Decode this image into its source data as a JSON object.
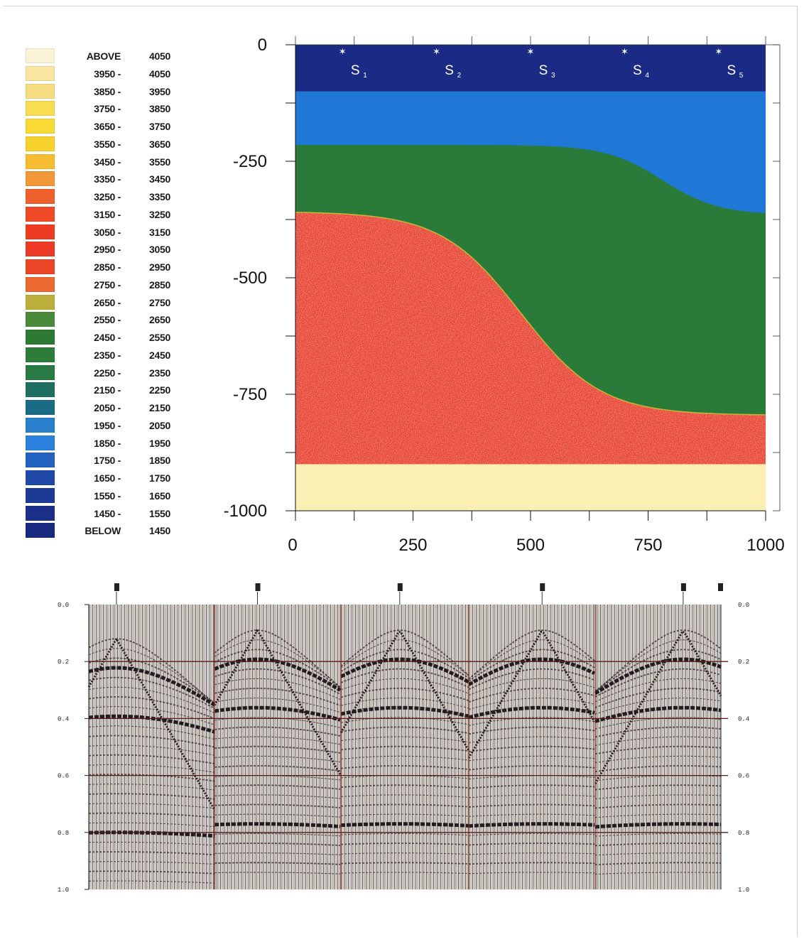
{
  "legend": {
    "items": [
      {
        "low": "ABOVE",
        "high": "4050",
        "color": "#fbf3d8"
      },
      {
        "low": "3950 -",
        "high": "4050",
        "color": "#f8e6a0"
      },
      {
        "low": "3850 -",
        "high": "3950",
        "color": "#f7dd82"
      },
      {
        "low": "3750 -",
        "high": "3850",
        "color": "#f8dc52"
      },
      {
        "low": "3650 -",
        "high": "3750",
        "color": "#f9d934"
      },
      {
        "low": "3550 -",
        "high": "3650",
        "color": "#f8d22c"
      },
      {
        "low": "3450 -",
        "high": "3550",
        "color": "#f6bd32"
      },
      {
        "low": "3350 -",
        "high": "3450",
        "color": "#f29838"
      },
      {
        "low": "3250 -",
        "high": "3350",
        "color": "#f0602c"
      },
      {
        "low": "3150 -",
        "high": "3250",
        "color": "#ee4a26"
      },
      {
        "low": "3050 -",
        "high": "3150",
        "color": "#ee3c22"
      },
      {
        "low": "2950 -",
        "high": "3050",
        "color": "#ec3a26"
      },
      {
        "low": "2850 -",
        "high": "2950",
        "color": "#ec4426"
      },
      {
        "low": "2750 -",
        "high": "2850",
        "color": "#ec6a32"
      },
      {
        "low": "2650 -",
        "high": "2750",
        "color": "#bcae3a"
      },
      {
        "low": "2550 -",
        "high": "2650",
        "color": "#4a8a3a"
      },
      {
        "low": "2450 -",
        "high": "2550",
        "color": "#2c7a34"
      },
      {
        "low": "2350 -",
        "high": "2450",
        "color": "#2e7c3a"
      },
      {
        "low": "2250 -",
        "high": "2350",
        "color": "#2a7a46"
      },
      {
        "low": "2150 -",
        "high": "2250",
        "color": "#1e6e62"
      },
      {
        "low": "2050 -",
        "high": "2150",
        "color": "#1a6c86"
      },
      {
        "low": "1950 -",
        "high": "2050",
        "color": "#2a80cc"
      },
      {
        "low": "1850 -",
        "high": "1950",
        "color": "#2a82dc"
      },
      {
        "low": "1750 -",
        "high": "1850",
        "color": "#2462c2"
      },
      {
        "low": "1650 -",
        "high": "1750",
        "color": "#2048a6"
      },
      {
        "low": "1550 -",
        "high": "1650",
        "color": "#1c3a96"
      },
      {
        "low": "1450 -",
        "high": "1550",
        "color": "#1a3088"
      },
      {
        "low": "BELOW",
        "high": "1450",
        "color": "#1a2a80"
      }
    ]
  },
  "model": {
    "y_ticks": [
      "0",
      "-250",
      "-500",
      "-750",
      "-1000"
    ],
    "x_ticks": [
      "0",
      "250",
      "500",
      "750",
      "1000"
    ],
    "sources": [
      {
        "name": "S",
        "sub": "1",
        "x": 100
      },
      {
        "name": "S",
        "sub": "2",
        "x": 300
      },
      {
        "name": "S",
        "sub": "3",
        "x": 500
      },
      {
        "name": "S",
        "sub": "4",
        "x": 700
      },
      {
        "name": "S",
        "sub": "5",
        "x": 900
      }
    ],
    "colors": {
      "water": "#1b2a85",
      "layer_blue": "#1f78d6",
      "layer_green": "#2a7a3a",
      "layer_red": "#e93a1e",
      "basement": "#fbefb4"
    }
  },
  "seismic": {
    "left_ticks": [
      "0.0",
      "0.2",
      "0.4",
      "0.6",
      "0.8",
      "1.0"
    ],
    "right_ticks": [
      "0.0",
      "0.2",
      "0.4",
      "0.6",
      "0.8",
      "1.0"
    ]
  }
}
